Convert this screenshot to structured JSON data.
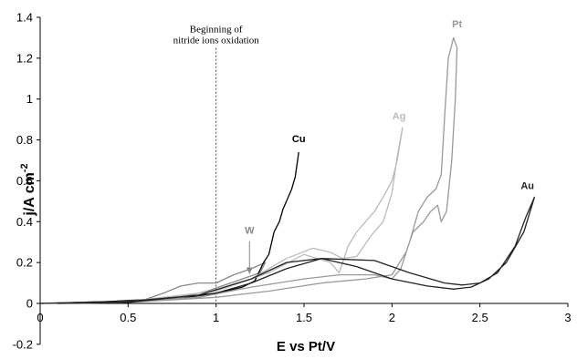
{
  "chart_data": {
    "type": "line",
    "xlabel": "E vs Pt/V",
    "ylabel_main": "j/A cm",
    "ylabel_sup": "-2",
    "xlim": [
      0,
      3
    ],
    "ylim": [
      -0.2,
      1.4
    ],
    "x_ticks": [
      {
        "v": 0,
        "label": "0"
      },
      {
        "v": 0.5,
        "label": "0.5"
      },
      {
        "v": 1,
        "label": "1"
      },
      {
        "v": 1.5,
        "label": "1.5"
      },
      {
        "v": 2,
        "label": "2"
      },
      {
        "v": 2.5,
        "label": "2.5"
      },
      {
        "v": 3,
        "label": "3"
      }
    ],
    "y_ticks": [
      {
        "v": -0.2,
        "label": "-0.2"
      },
      {
        "v": 0,
        "label": "0"
      },
      {
        "v": 0.2,
        "label": "0.2"
      },
      {
        "v": 0.4,
        "label": "0.4"
      },
      {
        "v": 0.6,
        "label": "0.6"
      },
      {
        "v": 0.8,
        "label": "0.8"
      },
      {
        "v": 1,
        "label": "1"
      },
      {
        "v": 1.2,
        "label": "1.2"
      },
      {
        "v": 1.4,
        "label": "1.4"
      }
    ],
    "grid": false,
    "annotation": {
      "line1": "Beginning of",
      "line2": "nitride ions oxidation",
      "x": 1.0
    },
    "series": [
      {
        "name": "W",
        "color": "#888888",
        "label_at": [
          1.19,
          0.34
        ],
        "arrow_from": [
          1.19,
          0.305
        ],
        "arrow_to": [
          1.19,
          0.145
        ],
        "points": [
          [
            0,
            0
          ],
          [
            0.3,
            0.005
          ],
          [
            0.6,
            0.02
          ],
          [
            0.7,
            0.05
          ],
          [
            0.8,
            0.085
          ],
          [
            0.9,
            0.1
          ],
          [
            1.0,
            0.1
          ],
          [
            1.1,
            0.14
          ],
          [
            1.2,
            0.17
          ],
          [
            1.28,
            0.2
          ],
          [
            1.25,
            0.15
          ],
          [
            1.15,
            0.12
          ],
          [
            1.05,
            0.09
          ],
          [
            0.95,
            0.06
          ],
          [
            0.85,
            0.04
          ],
          [
            0.7,
            0.02
          ],
          [
            0.5,
            0.005
          ],
          [
            0.2,
            0.0
          ]
        ]
      },
      {
        "name": "Cu",
        "color": "#000000",
        "label_at": [
          1.47,
          0.79
        ],
        "points": [
          [
            0,
            0
          ],
          [
            0.4,
            0.01
          ],
          [
            0.8,
            0.025
          ],
          [
            1.0,
            0.05
          ],
          [
            1.15,
            0.08
          ],
          [
            1.22,
            0.11
          ],
          [
            1.27,
            0.2
          ],
          [
            1.3,
            0.24
          ],
          [
            1.33,
            0.35
          ],
          [
            1.36,
            0.4
          ],
          [
            1.38,
            0.46
          ],
          [
            1.41,
            0.52
          ],
          [
            1.43,
            0.56
          ],
          [
            1.45,
            0.62
          ],
          [
            1.47,
            0.74
          ]
        ]
      },
      {
        "name": "Ag",
        "color": "#bbbbbb",
        "label_at": [
          2.04,
          0.9
        ],
        "points": [
          [
            0,
            0
          ],
          [
            0.5,
            0.01
          ],
          [
            0.9,
            0.04
          ],
          [
            1.2,
            0.12
          ],
          [
            1.4,
            0.22
          ],
          [
            1.55,
            0.27
          ],
          [
            1.65,
            0.25
          ],
          [
            1.72,
            0.22
          ],
          [
            1.8,
            0.23
          ],
          [
            1.88,
            0.33
          ],
          [
            1.95,
            0.4
          ],
          [
            2.0,
            0.54
          ],
          [
            2.03,
            0.72
          ],
          [
            2.06,
            0.86
          ],
          [
            2.03,
            0.7
          ],
          [
            2.0,
            0.6
          ],
          [
            1.95,
            0.52
          ],
          [
            1.9,
            0.45
          ],
          [
            1.85,
            0.4
          ],
          [
            1.8,
            0.35
          ],
          [
            1.75,
            0.28
          ],
          [
            1.7,
            0.15
          ],
          [
            1.65,
            0.2
          ],
          [
            1.5,
            0.24
          ],
          [
            1.3,
            0.15
          ],
          [
            1.0,
            0.06
          ],
          [
            0.5,
            0.01
          ],
          [
            0.1,
            0.0
          ]
        ]
      },
      {
        "name": "Pt",
        "color": "#999999",
        "label_at": [
          2.37,
          1.35
        ],
        "points": [
          [
            0,
            0
          ],
          [
            0.5,
            0.01
          ],
          [
            0.9,
            0.03
          ],
          [
            1.2,
            0.08
          ],
          [
            1.5,
            0.12
          ],
          [
            1.7,
            0.14
          ],
          [
            1.9,
            0.14
          ],
          [
            2.0,
            0.12
          ],
          [
            2.05,
            0.17
          ],
          [
            2.1,
            0.3
          ],
          [
            2.15,
            0.45
          ],
          [
            2.2,
            0.52
          ],
          [
            2.25,
            0.56
          ],
          [
            2.28,
            0.63
          ],
          [
            2.3,
            0.92
          ],
          [
            2.32,
            1.2
          ],
          [
            2.35,
            1.3
          ],
          [
            2.37,
            1.25
          ],
          [
            2.36,
            1.0
          ],
          [
            2.34,
            0.7
          ],
          [
            2.31,
            0.45
          ],
          [
            2.28,
            0.4
          ],
          [
            2.26,
            0.48
          ],
          [
            2.22,
            0.45
          ],
          [
            2.18,
            0.4
          ],
          [
            2.12,
            0.35
          ],
          [
            2.08,
            0.25
          ],
          [
            2.0,
            0.14
          ],
          [
            1.85,
            0.12
          ],
          [
            1.6,
            0.1
          ],
          [
            1.3,
            0.06
          ],
          [
            1.0,
            0.03
          ],
          [
            0.5,
            0.005
          ],
          [
            0.1,
            0.0
          ]
        ]
      },
      {
        "name": "Au",
        "color": "#222222",
        "label_at": [
          2.77,
          0.56
        ],
        "points": [
          [
            0,
            0
          ],
          [
            0.5,
            0.01
          ],
          [
            0.9,
            0.04
          ],
          [
            1.2,
            0.12
          ],
          [
            1.4,
            0.2
          ],
          [
            1.6,
            0.22
          ],
          [
            1.9,
            0.21
          ],
          [
            2.1,
            0.15
          ],
          [
            2.3,
            0.1
          ],
          [
            2.4,
            0.09
          ],
          [
            2.5,
            0.1
          ],
          [
            2.6,
            0.15
          ],
          [
            2.7,
            0.28
          ],
          [
            2.76,
            0.42
          ],
          [
            2.8,
            0.5
          ],
          [
            2.81,
            0.52
          ],
          [
            2.75,
            0.35
          ],
          [
            2.65,
            0.2
          ],
          [
            2.55,
            0.12
          ],
          [
            2.45,
            0.08
          ],
          [
            2.35,
            0.07
          ],
          [
            2.2,
            0.085
          ],
          [
            2.0,
            0.12
          ],
          [
            1.8,
            0.18
          ],
          [
            1.6,
            0.22
          ],
          [
            1.4,
            0.17
          ],
          [
            1.2,
            0.1
          ],
          [
            1.0,
            0.05
          ],
          [
            0.5,
            0.005
          ],
          [
            0.1,
            0.0
          ]
        ]
      }
    ]
  }
}
